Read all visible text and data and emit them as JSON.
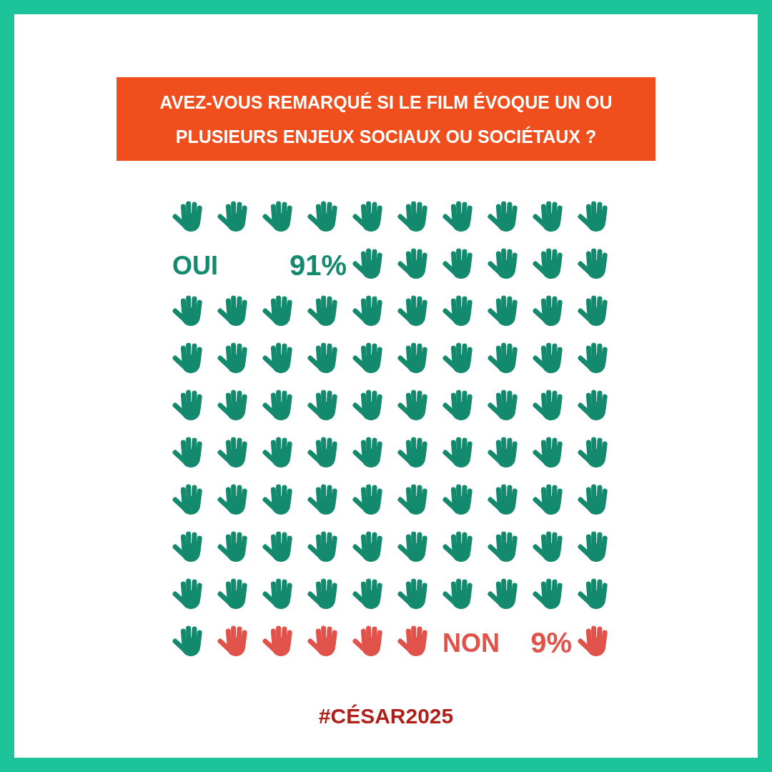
{
  "chart_data": {
    "type": "other",
    "title": "AVEZ-VOUS REMARQUÉ SI LE FILM ÉVOQUE UN OU PLUSIEURS ENJEUX SOCIAUX OU SOCIÉTAUX ?",
    "categories": [
      "OUI",
      "NON"
    ],
    "values": [
      91,
      9
    ],
    "value_labels": [
      "91%",
      "9%"
    ],
    "colors": [
      "#138a6e",
      "#e0524a"
    ],
    "annotations": [
      "#CÉSAR2025"
    ]
  }
}
